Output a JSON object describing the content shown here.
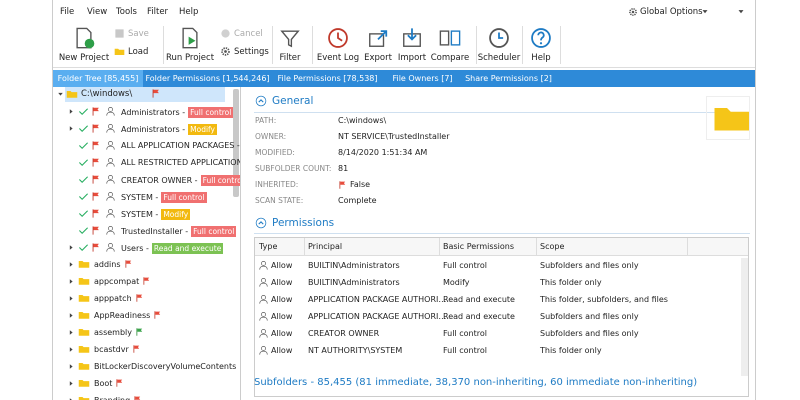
{
  "menu": {
    "items": [
      "File",
      "View",
      "Tools",
      "Filter",
      "Help"
    ],
    "global_options": "Global Options"
  },
  "toolbar": {
    "buttons": [
      {
        "label": "New Project"
      },
      {
        "label": "Save",
        "disabled": true
      },
      {
        "label": "Load"
      },
      {
        "label": "Run Project"
      },
      {
        "label": "Cancel",
        "disabled": true
      },
      {
        "label": "Settings"
      },
      {
        "label": "Filter"
      },
      {
        "label": "Event Log"
      },
      {
        "label": "Export"
      },
      {
        "label": "Import"
      },
      {
        "label": "Compare"
      },
      {
        "label": "Scheduler"
      },
      {
        "label": "Help"
      }
    ]
  },
  "tabs": [
    "Folder Tree [85,455]",
    "Folder Permissions [1,544,246]",
    "File Permissions [78,538]",
    "File Owners [7]",
    "Share Permissions [2]"
  ],
  "tree": {
    "root": "C:\\windows\\",
    "permissions": [
      {
        "principal": "Administrators -",
        "badge": {
          "text": "Full control",
          "color": "#f07070"
        }
      },
      {
        "principal": "Administrators -",
        "badge": {
          "text": "Modify",
          "color": "#f2b90f"
        }
      },
      {
        "principal": "ALL APPLICATION PACKAGES -"
      },
      {
        "principal": "ALL RESTRICTED APPLICATION"
      },
      {
        "principal": "CREATOR OWNER -",
        "badge": {
          "text": "Full control",
          "color": "#f07070"
        }
      },
      {
        "principal": "SYSTEM -",
        "badge": {
          "text": "Full control",
          "color": "#f07070"
        }
      },
      {
        "principal": "SYSTEM -",
        "badge": {
          "text": "Modify",
          "color": "#f2b90f"
        }
      },
      {
        "principal": "TrustedInstaller -",
        "badge": {
          "text": "Full control",
          "color": "#f07070"
        }
      },
      {
        "principal": "Users -",
        "badge": {
          "text": "Read and execute",
          "color": "#7cc253"
        }
      }
    ],
    "folders": [
      "addins",
      "appcompat",
      "apppatch",
      "AppReadiness",
      "assembly",
      "bcastdvr",
      "BitLockerDiscoveryVolumeContents",
      "Boot",
      "Branding"
    ]
  },
  "general": {
    "title": "General",
    "rows": [
      {
        "label": "PATH:",
        "value": "C:\\windows\\"
      },
      {
        "label": "OWNER:",
        "value": "NT SERVICE\\TrustedInstaller"
      },
      {
        "label": "MODIFIED:",
        "value": "8/14/2020 1:51:34 AM"
      },
      {
        "label": "SUBFOLDER COUNT:",
        "value": "81"
      },
      {
        "label": "INHERITED:",
        "value": "False"
      },
      {
        "label": "SCAN STATE:",
        "value": "Complete"
      }
    ]
  },
  "permissions": {
    "title": "Permissions",
    "columns": [
      "Type",
      "Principal",
      "Basic Permissions",
      "Scope"
    ],
    "rows": [
      [
        "Allow",
        "BUILTIN\\Administrators",
        "Full control",
        "Subfolders and files only"
      ],
      [
        "Allow",
        "BUILTIN\\Administrators",
        "Modify",
        "This folder only"
      ],
      [
        "Allow",
        "APPLICATION PACKAGE AUTHORI…",
        "Read and execute",
        "This folder, subfolders, and files"
      ],
      [
        "Allow",
        "APPLICATION PACKAGE AUTHORI…",
        "Read and execute",
        "Subfolders and files only"
      ],
      [
        "Allow",
        "CREATOR OWNER",
        "Full control",
        "Subfolders and files only"
      ],
      [
        "Allow",
        "NT AUTHORITY\\SYSTEM",
        "Full control",
        "This folder only"
      ]
    ]
  },
  "subfolders": "Subfolders - 85,455 (81 immediate, 38,370 non-inheriting, 60 immediate non-inheriting)"
}
